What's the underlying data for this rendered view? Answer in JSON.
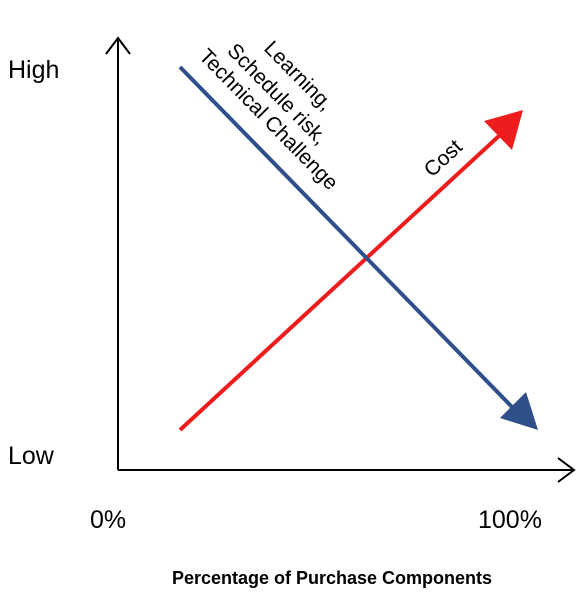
{
  "y_axis": {
    "high": "High",
    "low": "Low"
  },
  "x_axis": {
    "start": "0%",
    "end": "100%",
    "title": "Percentage of Purchase Components"
  },
  "lines": [
    {
      "label_lines": [
        "Learning,",
        "Schedule risk,",
        "Technical Challenge"
      ]
    },
    {
      "label_lines": [
        "Cost"
      ]
    }
  ]
}
